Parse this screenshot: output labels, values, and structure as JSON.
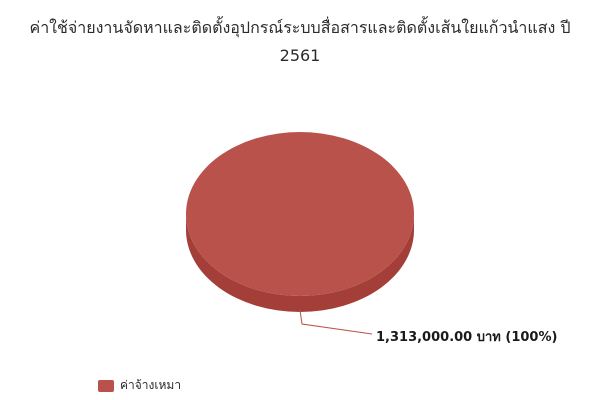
{
  "chart_data": {
    "type": "pie",
    "title_lines": [
      "ค่าใช้จ่ายงานจัดหาและติดตั้งอุปกรณ์ระบบสื่อสารและติดตั้งเส้นใยแก้วนำแสง ปี",
      "2561"
    ],
    "slices": [
      {
        "name": "ค่าจ้างเหมา",
        "value": 1313000.0,
        "percent": 100,
        "label": "1,313,000.00 บาท (100%)",
        "color": "#b9524b",
        "side_color": "#a33f38"
      }
    ],
    "legend_placement": "bottom-left"
  }
}
